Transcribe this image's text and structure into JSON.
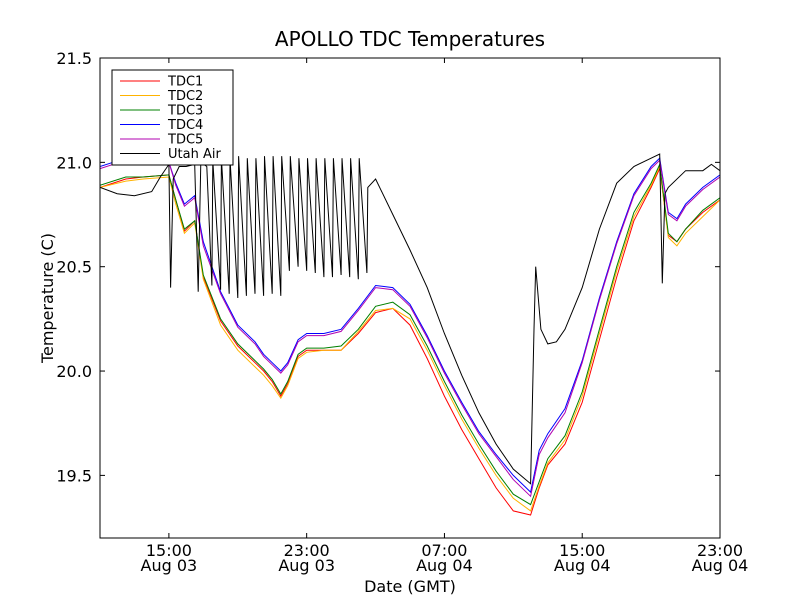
{
  "chart_data": {
    "type": "line",
    "title": "APOLLO TDC Temperatures",
    "xlabel": "Date (GMT)",
    "ylabel": "Temperature (C)",
    "xlim": [
      11,
      47
    ],
    "ylim": [
      19.2,
      21.5
    ],
    "yticks": [
      19.5,
      20.0,
      20.5,
      21.0,
      21.5
    ],
    "ytick_labels": [
      "19.5",
      "20.0",
      "20.5",
      "21.0",
      "21.5"
    ],
    "xticks": [
      {
        "x": 15,
        "label": "15:00",
        "label2": "Aug 03"
      },
      {
        "x": 23,
        "label": "23:00",
        "label2": "Aug 03"
      },
      {
        "x": 31,
        "label": "07:00",
        "label2": "Aug 04"
      },
      {
        "x": 39,
        "label": "15:00",
        "label2": "Aug 04"
      },
      {
        "x": 47,
        "label": "23:00",
        "label2": "Aug 04"
      }
    ],
    "x_unit": "hours since 2014-08-03 00:00 GMT",
    "grid": false,
    "legend_position": "top-left",
    "series": [
      {
        "name": "TDC1",
        "color": "#ff0000",
        "x": [
          11,
          12.5,
          13.5,
          15,
          15.4,
          15.9,
          16.5,
          17,
          18,
          19,
          20,
          20.5,
          21,
          21.5,
          21.9,
          22.5,
          23,
          24,
          25,
          26,
          27,
          28,
          29,
          30,
          31,
          32,
          33,
          34,
          35,
          36,
          36.5,
          37,
          38,
          39,
          40,
          41,
          42,
          43,
          43.5,
          44,
          44.5,
          45,
          46,
          47
        ],
        "y": [
          20.88,
          20.92,
          20.93,
          20.94,
          20.82,
          20.67,
          20.72,
          20.45,
          20.24,
          20.12,
          20.04,
          20.0,
          19.95,
          19.88,
          19.94,
          20.07,
          20.1,
          20.1,
          20.1,
          20.18,
          20.28,
          20.3,
          20.22,
          20.06,
          19.88,
          19.72,
          19.58,
          19.44,
          19.33,
          19.31,
          19.44,
          19.55,
          19.65,
          19.85,
          20.15,
          20.45,
          20.72,
          20.88,
          20.97,
          20.65,
          20.62,
          20.68,
          20.76,
          20.82
        ]
      },
      {
        "name": "TDC2",
        "color": "#ffb300",
        "x": [
          11,
          12.5,
          13.5,
          15,
          15.4,
          15.9,
          16.5,
          17,
          18,
          19,
          20,
          20.5,
          21,
          21.5,
          21.9,
          22.5,
          23,
          24,
          25,
          26,
          27,
          28,
          29,
          30,
          31,
          32,
          33,
          34,
          35,
          36,
          36.5,
          37,
          38,
          39,
          40,
          41,
          42,
          43,
          43.5,
          44,
          44.5,
          45,
          46,
          47
        ],
        "y": [
          20.88,
          20.91,
          20.92,
          20.93,
          20.8,
          20.66,
          20.71,
          20.44,
          20.22,
          20.1,
          20.02,
          19.98,
          19.93,
          19.87,
          19.93,
          20.06,
          20.09,
          20.1,
          20.1,
          20.19,
          20.29,
          20.3,
          20.25,
          20.1,
          19.93,
          19.77,
          19.63,
          19.5,
          19.39,
          19.33,
          19.45,
          19.56,
          19.67,
          19.88,
          20.18,
          20.48,
          20.74,
          20.89,
          20.98,
          20.64,
          20.6,
          20.66,
          20.74,
          20.82
        ]
      },
      {
        "name": "TDC3",
        "color": "#008000",
        "x": [
          11,
          12.5,
          13.5,
          15,
          15.4,
          15.9,
          16.5,
          17,
          18,
          19,
          20,
          20.5,
          21,
          21.5,
          21.9,
          22.5,
          23,
          24,
          25,
          26,
          27,
          28,
          29,
          30,
          31,
          32,
          33,
          34,
          35,
          36,
          36.5,
          37,
          38,
          39,
          40,
          41,
          42,
          43,
          43.5,
          44,
          44.5,
          45,
          46,
          47
        ],
        "y": [
          20.89,
          20.93,
          20.93,
          20.94,
          20.82,
          20.68,
          20.72,
          20.46,
          20.25,
          20.13,
          20.05,
          20.01,
          19.96,
          19.89,
          19.95,
          20.08,
          20.11,
          20.11,
          20.12,
          20.2,
          20.31,
          20.33,
          20.27,
          20.12,
          19.95,
          19.79,
          19.65,
          19.52,
          19.41,
          19.36,
          19.47,
          19.58,
          19.69,
          19.9,
          20.2,
          20.5,
          20.76,
          20.9,
          20.99,
          20.66,
          20.62,
          20.68,
          20.77,
          20.83
        ]
      },
      {
        "name": "TDC4",
        "color": "#0000ff",
        "x": [
          11,
          12.5,
          13.5,
          15,
          15.4,
          15.9,
          16.5,
          17,
          18,
          19,
          20,
          20.5,
          21,
          21.5,
          21.9,
          22.5,
          23,
          24,
          25,
          26,
          27,
          28,
          29,
          30,
          31,
          32,
          33,
          34,
          35,
          36,
          36.5,
          37,
          38,
          39,
          40,
          41,
          42,
          43,
          43.5,
          44,
          44.5,
          45,
          46,
          47
        ],
        "y": [
          20.98,
          21.02,
          21.01,
          21.0,
          20.9,
          20.8,
          20.84,
          20.62,
          20.38,
          20.22,
          20.14,
          20.08,
          20.04,
          20.0,
          20.04,
          20.15,
          20.18,
          20.18,
          20.2,
          20.3,
          20.41,
          20.4,
          20.32,
          20.17,
          20.0,
          19.85,
          19.71,
          19.6,
          19.5,
          19.42,
          19.62,
          19.7,
          19.82,
          20.05,
          20.35,
          20.62,
          20.85,
          20.98,
          21.02,
          20.76,
          20.73,
          20.8,
          20.88,
          20.94
        ]
      },
      {
        "name": "TDC5",
        "color": "#b000b0",
        "x": [
          11,
          12.5,
          13.5,
          15,
          15.4,
          15.9,
          16.5,
          17,
          18,
          19,
          20,
          20.5,
          21,
          21.5,
          21.9,
          22.5,
          23,
          24,
          25,
          26,
          27,
          28,
          29,
          30,
          31,
          32,
          33,
          34,
          35,
          36,
          36.5,
          37,
          38,
          39,
          40,
          41,
          42,
          43,
          43.5,
          44,
          44.5,
          45,
          46,
          47
        ],
        "y": [
          20.97,
          21.01,
          21.0,
          21.0,
          20.89,
          20.79,
          20.83,
          20.6,
          20.37,
          20.21,
          20.13,
          20.07,
          20.03,
          19.99,
          20.03,
          20.14,
          20.17,
          20.17,
          20.19,
          20.29,
          20.4,
          20.39,
          20.31,
          20.16,
          19.99,
          19.84,
          19.7,
          19.59,
          19.48,
          19.4,
          19.6,
          19.68,
          19.8,
          20.04,
          20.34,
          20.61,
          20.84,
          20.97,
          21.01,
          20.75,
          20.72,
          20.79,
          20.87,
          20.93
        ]
      },
      {
        "name": "Utah Air",
        "color": "#000000",
        "x": [
          11,
          12,
          13,
          14,
          14.5,
          15,
          15.1,
          15.25,
          15.6,
          16,
          16.5,
          16.7,
          16.85,
          17.2,
          17.5,
          17.55,
          18,
          18.05,
          18.5,
          18.55,
          19,
          19.05,
          19.5,
          19.55,
          20,
          20.05,
          20.5,
          20.55,
          21,
          21.05,
          21.5,
          21.55,
          22,
          22.05,
          22.5,
          22.55,
          23,
          23.05,
          23.5,
          23.55,
          24,
          24.05,
          24.5,
          24.55,
          25,
          25.05,
          25.5,
          25.55,
          26,
          26.05,
          26.5,
          26.55,
          27,
          28,
          29,
          30,
          31,
          32,
          33,
          34,
          35,
          36,
          36.2,
          36.3,
          36.6,
          37,
          37.5,
          38,
          39,
          40,
          41,
          42,
          43,
          43.5,
          43.65,
          43.8,
          44,
          45,
          46,
          46.5,
          47
        ],
        "y": [
          20.88,
          20.85,
          20.84,
          20.86,
          20.93,
          20.99,
          20.4,
          20.92,
          20.98,
          20.98,
          20.99,
          20.38,
          21.0,
          20.98,
          20.41,
          21.01,
          20.39,
          21.02,
          20.37,
          21.02,
          20.35,
          21.03,
          20.36,
          21.02,
          20.37,
          21.02,
          20.36,
          21.03,
          20.37,
          21.03,
          20.36,
          21.03,
          20.48,
          21.03,
          20.5,
          21.02,
          20.48,
          21.02,
          20.47,
          21.02,
          20.45,
          21.02,
          20.45,
          21.02,
          20.46,
          21.02,
          20.45,
          21.02,
          20.44,
          21.02,
          20.47,
          20.88,
          20.92,
          20.75,
          20.58,
          20.4,
          20.18,
          19.98,
          19.8,
          19.65,
          19.53,
          19.46,
          20.2,
          20.5,
          20.2,
          20.13,
          20.14,
          20.2,
          20.4,
          20.68,
          20.9,
          20.98,
          21.02,
          21.04,
          20.42,
          20.85,
          20.88,
          20.96,
          20.96,
          20.99,
          20.96
        ]
      }
    ]
  }
}
